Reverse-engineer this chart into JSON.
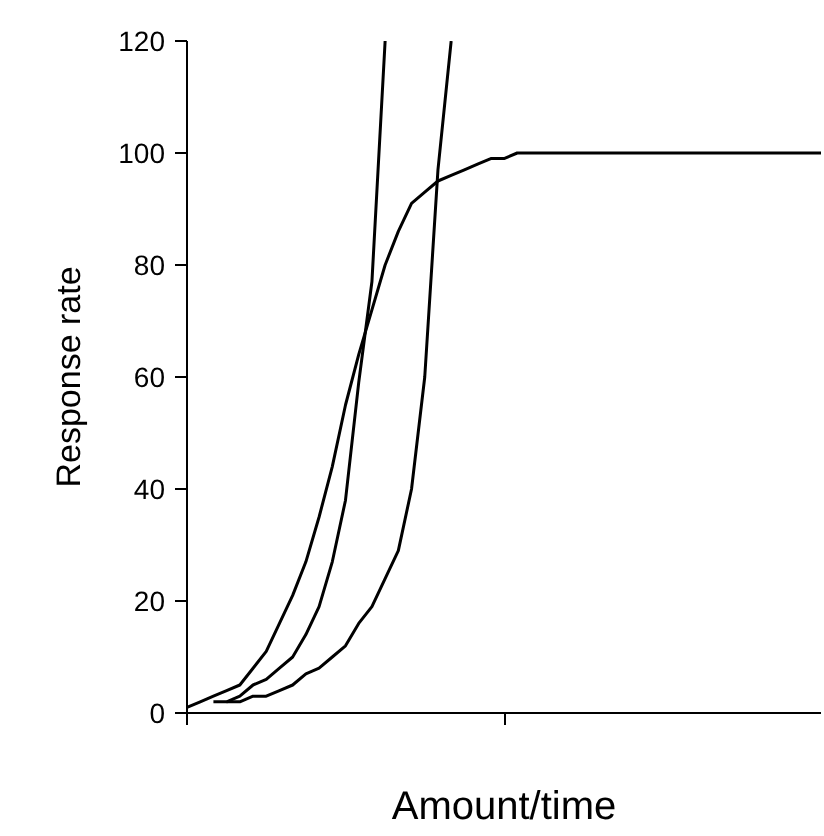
{
  "chart_data": {
    "type": "line",
    "xlabel": "Amount/time",
    "ylabel": "Response rate",
    "categories": [
      null,
      null,
      null,
      null,
      null,
      null,
      null,
      null,
      null,
      null,
      null,
      null,
      null,
      null,
      null,
      null,
      null,
      null,
      null,
      null,
      null,
      null,
      null,
      null,
      null,
      null,
      null,
      null,
      null,
      null,
      null,
      null,
      null,
      null,
      null,
      null,
      null,
      null,
      null,
      null,
      null,
      null,
      null,
      null,
      null,
      null,
      null,
      null,
      null
    ],
    "ylim": [
      0,
      120
    ],
    "yticks": [
      0,
      20,
      40,
      60,
      80,
      100,
      120
    ],
    "tick_labels": "y",
    "marker": "none",
    "line_style": "solid",
    "series": [
      {
        "color": "#000000",
        "values": [
          1,
          2,
          3,
          4,
          5,
          8,
          11,
          16,
          21,
          27,
          35,
          44,
          55,
          64,
          72,
          80,
          86,
          91,
          93,
          95,
          96,
          97,
          98,
          99,
          99,
          100,
          100,
          100,
          100,
          100,
          100,
          100,
          100,
          100,
          100,
          100,
          100,
          100,
          100,
          100,
          100,
          100,
          100,
          100,
          100,
          100,
          100,
          100,
          100
        ]
      },
      {
        "color": "#000000",
        "values": [
          null,
          null,
          2,
          2,
          3,
          5,
          6,
          8,
          10,
          14,
          19,
          27,
          38,
          59,
          77,
          120,
          null,
          null,
          null,
          null,
          null,
          null,
          null,
          null,
          null,
          null,
          null,
          null,
          null,
          null,
          null,
          null,
          null,
          null,
          null,
          null,
          null,
          null,
          null,
          null,
          null,
          null,
          null,
          null,
          null,
          null,
          null,
          null,
          null
        ]
      },
      {
        "color": "#000000",
        "values": [
          null,
          null,
          null,
          2,
          2,
          3,
          3,
          4,
          5,
          7,
          8,
          10,
          12,
          16,
          19,
          24,
          29,
          40,
          60,
          97,
          120,
          null,
          null,
          null,
          null,
          null,
          null,
          null,
          null,
          null,
          null,
          null,
          null,
          null,
          null,
          null,
          null,
          null,
          null,
          null,
          null,
          null,
          null,
          null,
          null,
          null,
          null,
          null,
          null
        ]
      }
    ]
  }
}
